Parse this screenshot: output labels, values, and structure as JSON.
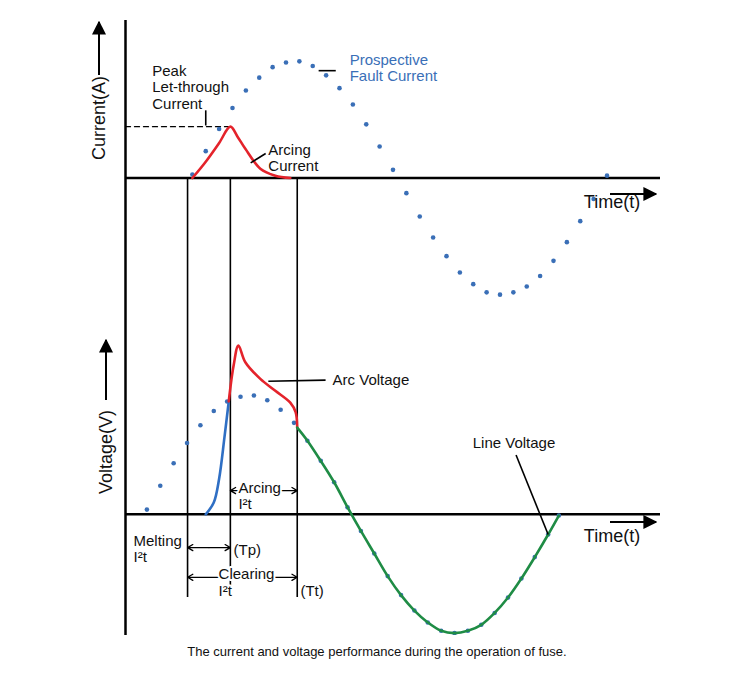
{
  "caption": "The current and voltage performance during the operation of fuse.",
  "chart_data": [
    {
      "type": "line",
      "xlabel": "Time(t)",
      "ylabel": "Current(A)",
      "xlim": [
        0,
        100
      ],
      "ylim": [
        -105,
        135
      ],
      "xticks": [
        0
      ],
      "yticks": [
        0
      ],
      "tick_labels": false,
      "series": [
        {
          "name": "Prospective Fault Current",
          "color": "#3a6fb7",
          "marker": "dot",
          "line_style": "none",
          "x": [
            12.5,
            15,
            17.5,
            20,
            22.5,
            25,
            27.5,
            30,
            32.5,
            35,
            37.5,
            40,
            42.5,
            45,
            47.5,
            50,
            52.5,
            55,
            57.5,
            60,
            62.5,
            65,
            67.5,
            70,
            72.5,
            75,
            77.5,
            80,
            82.5,
            85,
            87.5,
            90
          ],
          "values": [
            3,
            23,
            42,
            60,
            75,
            86,
            95,
            99,
            100,
            96,
            88,
            77,
            63,
            46,
            27,
            7,
            -13,
            -33,
            -51,
            -67,
            -81,
            -91,
            -98,
            -100,
            -98,
            -93,
            -84,
            -71,
            -55,
            -37,
            -18,
            2
          ]
        },
        {
          "name": "Arcing Current",
          "color": "#e4232b",
          "line_style": "solid",
          "x": [
            12.5,
            15,
            17.5,
            19.6,
            21,
            22.4,
            25.2,
            28,
            30.8
          ],
          "values": [
            0,
            14,
            30,
            44,
            35,
            25,
            8,
            2,
            0
          ]
        }
      ],
      "reference_lines": [
        {
          "y": 44,
          "x": [
            0,
            19.6
          ],
          "line_style": "dashed"
        }
      ],
      "guides": {
        "x": [
          11.6,
          19.6,
          32.1
        ],
        "y": [
          0,
          -105
        ]
      },
      "annotations": [
        {
          "text": "Peak\nLet-through\nCurrent",
          "x": 5.0,
          "y": 78,
          "leader": [
            15,
            58,
            15,
            45
          ]
        },
        {
          "text": "Prospective\nFault Current",
          "x": 41.9,
          "y": 94.5,
          "color": "#3a6fb7",
          "leader": [
            36.1,
            92,
            39.3,
            92
          ]
        },
        {
          "text": "Arcing\nCurrent",
          "x": 26.7,
          "y": 17.5,
          "leader": [
            23.4,
            13,
            26.2,
            21
          ]
        }
      ]
    },
    {
      "type": "line",
      "xlabel": "Time(t)",
      "ylabel": "Voltage(V)",
      "xlim": [
        0,
        100
      ],
      "ylim": [
        -102,
        180
      ],
      "xticks": [
        0
      ],
      "yticks": [
        0
      ],
      "tick_labels": false,
      "series": [
        {
          "color": "#3a6fb7",
          "marker": "dot",
          "line_style": "none",
          "x": [
            4,
            6.5,
            9,
            11.5,
            14,
            16.5,
            19,
            21.5,
            24,
            26.5,
            29,
            31.5,
            34,
            36.5,
            39,
            41.5,
            44,
            46.5,
            49,
            51.5,
            54,
            56.5,
            59,
            61.5,
            64,
            66.5,
            69,
            71.5,
            74,
            76.5,
            79,
            81
          ],
          "values": [
            4,
            24,
            43,
            60,
            75,
            87,
            95,
            99,
            100,
            96,
            88,
            77,
            62,
            45,
            27,
            6,
            -14,
            -33,
            -52,
            -68,
            -81,
            -91,
            -98,
            -100,
            -98,
            -93,
            -83,
            -70,
            -54,
            -36,
            -17,
            -1
          ]
        },
        {
          "color": "#2f6fc4",
          "line_style": "solid",
          "x": [
            15,
            16.5,
            17.5,
            18.5,
            19.3
          ],
          "values": [
            0,
            10,
            30,
            65,
            95
          ]
        },
        {
          "name": "Arc Voltage",
          "color": "#e4232b",
          "line_style": "solid",
          "x": [
            19.3,
            20.2,
            21.1,
            22.4,
            25.2,
            28,
            30.8,
            31.8,
            32.1
          ],
          "values": [
            95,
            125,
            142,
            128,
            114,
            104,
            94,
            86,
            73
          ]
        },
        {
          "name": "Line Voltage",
          "color": "#1f8c45",
          "line_style": "solid",
          "x": [
            32.1,
            34,
            36.5,
            39,
            41.5,
            44,
            46.5,
            49,
            51.5,
            54,
            56.5,
            59,
            61.5,
            64,
            66.5,
            69,
            71.5,
            74,
            76.5,
            79,
            81
          ],
          "values": [
            73,
            62,
            45,
            27,
            6,
            -14,
            -33,
            -52,
            -68,
            -81,
            -91,
            -98,
            -100,
            -98,
            -93,
            -83,
            -70,
            -54,
            -36,
            -17,
            -1
          ]
        }
      ],
      "guides": {
        "x": [
          11.6,
          19.6,
          32.1
        ],
        "y": [
          180,
          -70
        ]
      },
      "intervals": [
        {
          "from": 19.6,
          "to": 32.1,
          "y": 20
        },
        {
          "from": 11.6,
          "to": 19.6,
          "y": -28
        },
        {
          "from": 11.6,
          "to": 32.1,
          "y": -53
        }
      ],
      "annotations": [
        {
          "text": "Arc Voltage",
          "x": 38.7,
          "y": 113,
          "leader": [
            26.7,
            112,
            37.4,
            113
          ]
        },
        {
          "text": "Line Voltage",
          "x": 64.9,
          "y": 60,
          "leader": [
            79,
            -17,
            73,
            50
          ]
        },
        {
          "text": "Arcing\nI²t",
          "x": 21.1,
          "y": 15.5
        },
        {
          "text": "Melting\nI²t",
          "x": 1.5,
          "y": -29
        },
        {
          "text": "(Tp)",
          "x": 20.2,
          "y": -30
        },
        {
          "text": "Clearing\nI²t",
          "x": 17.4,
          "y": -57
        },
        {
          "text": "(Tt)",
          "x": 32.7,
          "y": -64
        }
      ]
    }
  ]
}
